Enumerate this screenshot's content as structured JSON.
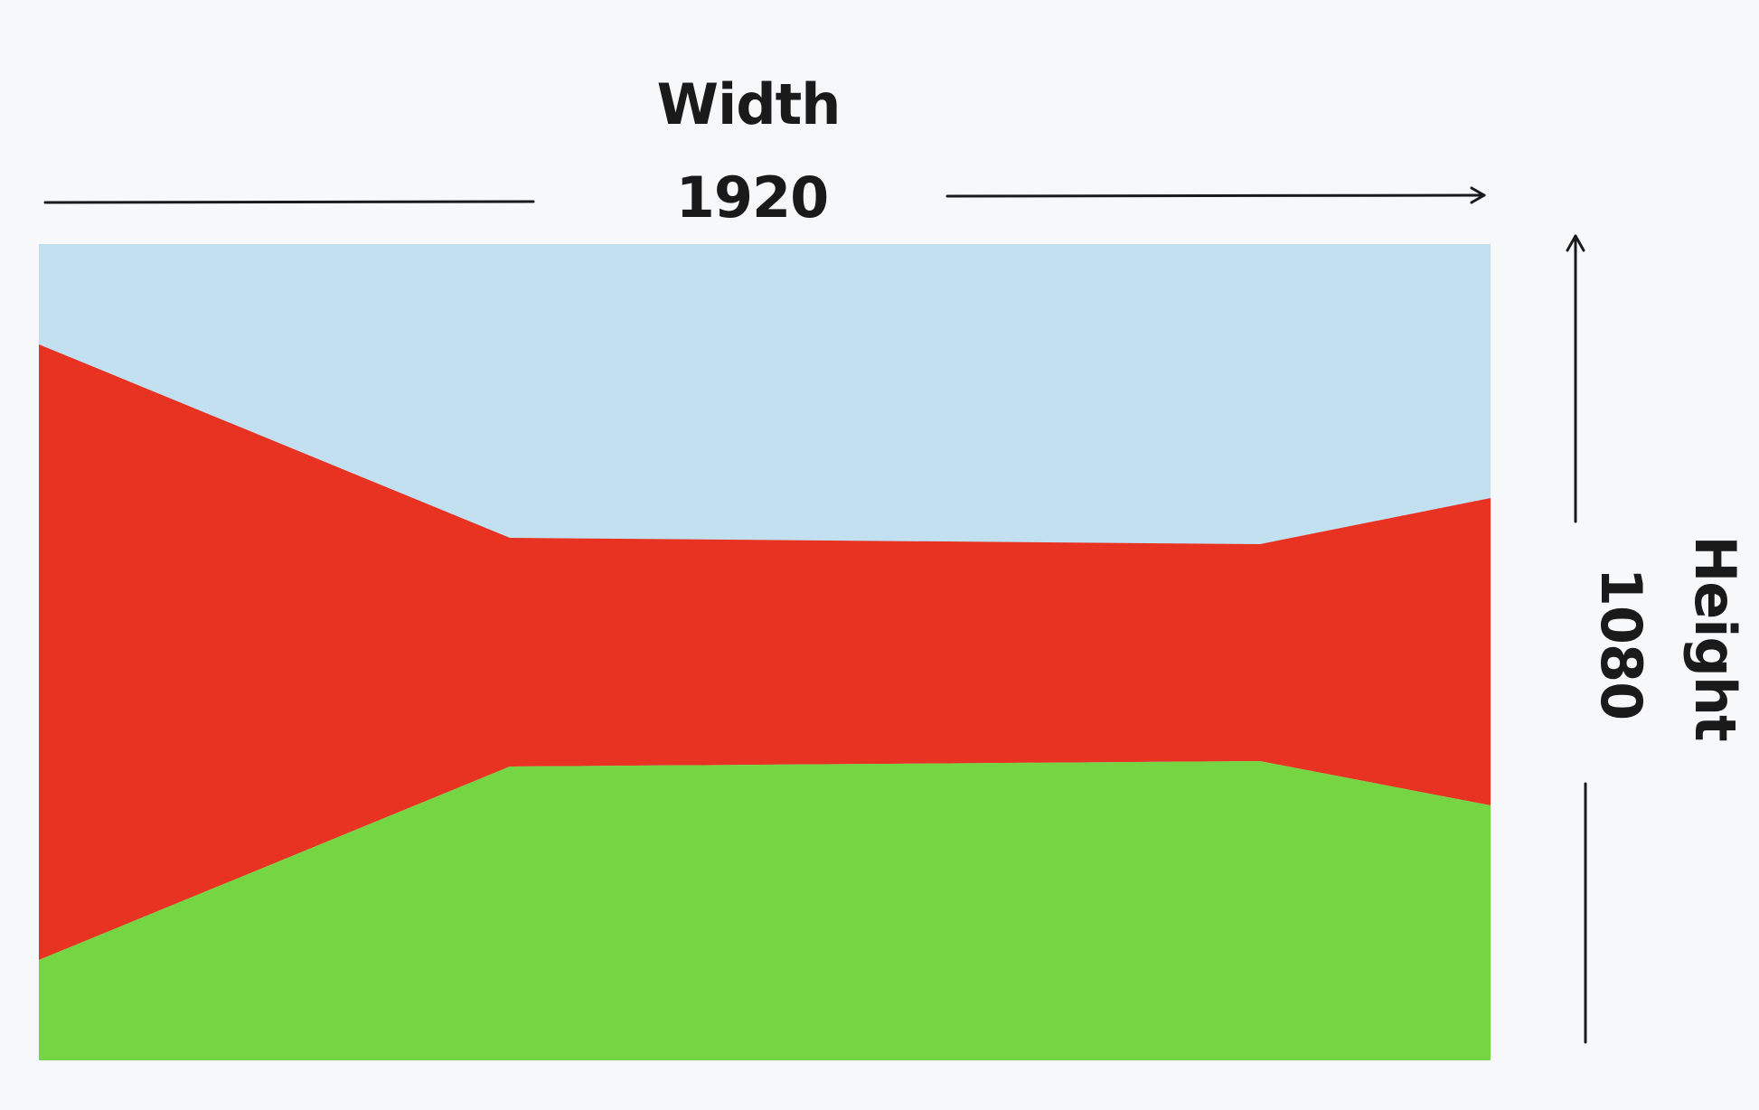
{
  "width_label": "Width",
  "width_value": "1920",
  "height_label": "Height",
  "height_value": "1080",
  "colors": {
    "sky": "#c3e0f0",
    "road": "#e83323",
    "grass": "#76d543",
    "ink": "#1a1a1a",
    "background": "#f7f8fa"
  }
}
